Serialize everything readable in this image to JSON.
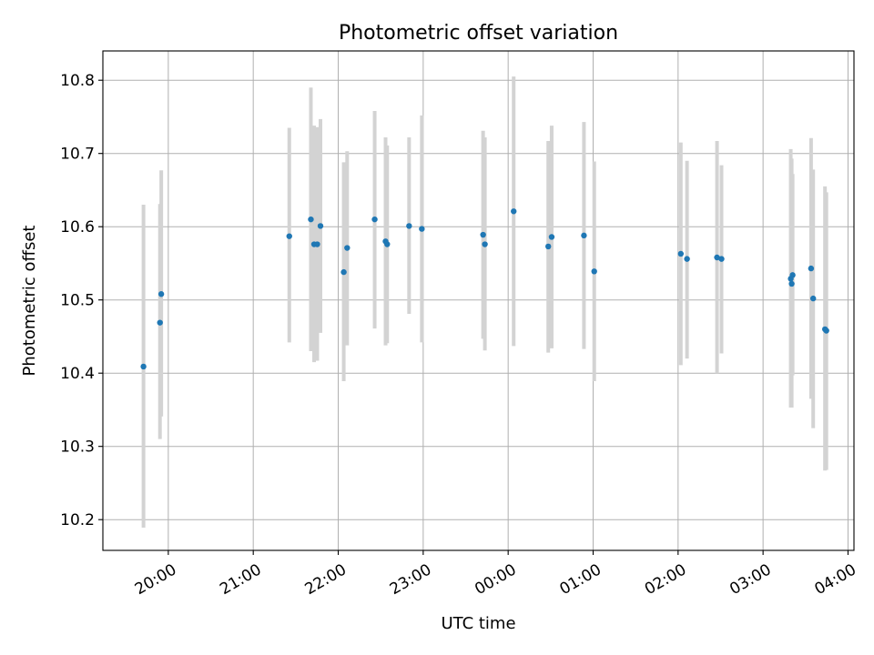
{
  "chart_data": {
    "type": "scatter",
    "title": "Photometric offset variation",
    "xlabel": "UTC time",
    "ylabel": "Photometric offset",
    "x_unit": "UTC hours on the 24h clock (times after midnight written as 24+h)",
    "xlim": [
      19.23,
      28.07
    ],
    "ylim": [
      10.158,
      10.84
    ],
    "x_ticks": [
      {
        "value": 20,
        "label": "20:00"
      },
      {
        "value": 21,
        "label": "21:00"
      },
      {
        "value": 22,
        "label": "22:00"
      },
      {
        "value": 23,
        "label": "23:00"
      },
      {
        "value": 24,
        "label": "00:00"
      },
      {
        "value": 25,
        "label": "01:00"
      },
      {
        "value": 26,
        "label": "02:00"
      },
      {
        "value": 27,
        "label": "03:00"
      },
      {
        "value": 28,
        "label": "04:00"
      }
    ],
    "y_ticks": [
      {
        "value": 10.2,
        "label": "10.2"
      },
      {
        "value": 10.3,
        "label": "10.3"
      },
      {
        "value": 10.4,
        "label": "10.4"
      },
      {
        "value": 10.5,
        "label": "10.5"
      },
      {
        "value": 10.6,
        "label": "10.6"
      },
      {
        "value": 10.7,
        "label": "10.7"
      },
      {
        "value": 10.8,
        "label": "10.8"
      }
    ],
    "grid": true,
    "point_color": "#1f77b4",
    "errorbar_color": "#d3d3d3",
    "points": [
      {
        "x": 19.708,
        "y": 10.409,
        "lo": 10.189,
        "hi": 10.63
      },
      {
        "x": 19.902,
        "y": 10.469,
        "lo": 10.31,
        "hi": 10.631
      },
      {
        "x": 19.917,
        "y": 10.508,
        "lo": 10.341,
        "hi": 10.677
      },
      {
        "x": 21.424,
        "y": 10.587,
        "lo": 10.442,
        "hi": 10.735
      },
      {
        "x": 21.678,
        "y": 10.61,
        "lo": 10.43,
        "hi": 10.79
      },
      {
        "x": 21.716,
        "y": 10.576,
        "lo": 10.415,
        "hi": 10.738
      },
      {
        "x": 21.753,
        "y": 10.576,
        "lo": 10.417,
        "hi": 10.736
      },
      {
        "x": 21.791,
        "y": 10.601,
        "lo": 10.455,
        "hi": 10.747
      },
      {
        "x": 22.065,
        "y": 10.538,
        "lo": 10.389,
        "hi": 10.688
      },
      {
        "x": 22.105,
        "y": 10.571,
        "lo": 10.438,
        "hi": 10.703
      },
      {
        "x": 22.429,
        "y": 10.61,
        "lo": 10.461,
        "hi": 10.758
      },
      {
        "x": 22.557,
        "y": 10.58,
        "lo": 10.438,
        "hi": 10.722
      },
      {
        "x": 22.576,
        "y": 10.576,
        "lo": 10.441,
        "hi": 10.711
      },
      {
        "x": 22.834,
        "y": 10.601,
        "lo": 10.481,
        "hi": 10.722
      },
      {
        "x": 22.984,
        "y": 10.597,
        "lo": 10.442,
        "hi": 10.752
      },
      {
        "x": 23.705,
        "y": 10.589,
        "lo": 10.447,
        "hi": 10.731
      },
      {
        "x": 23.726,
        "y": 10.576,
        "lo": 10.431,
        "hi": 10.722
      },
      {
        "x": 24.065,
        "y": 10.621,
        "lo": 10.437,
        "hi": 10.805
      },
      {
        "x": 24.472,
        "y": 10.573,
        "lo": 10.428,
        "hi": 10.717
      },
      {
        "x": 24.512,
        "y": 10.586,
        "lo": 10.434,
        "hi": 10.738
      },
      {
        "x": 24.892,
        "y": 10.588,
        "lo": 10.433,
        "hi": 10.743
      },
      {
        "x": 25.013,
        "y": 10.539,
        "lo": 10.389,
        "hi": 10.689
      },
      {
        "x": 26.032,
        "y": 10.563,
        "lo": 10.411,
        "hi": 10.715
      },
      {
        "x": 26.105,
        "y": 10.556,
        "lo": 10.42,
        "hi": 10.69
      },
      {
        "x": 26.458,
        "y": 10.558,
        "lo": 10.4,
        "hi": 10.717
      },
      {
        "x": 26.511,
        "y": 10.556,
        "lo": 10.427,
        "hi": 10.684
      },
      {
        "x": 27.326,
        "y": 10.529,
        "lo": 10.353,
        "hi": 10.706
      },
      {
        "x": 27.337,
        "y": 10.522,
        "lo": 10.353,
        "hi": 10.693
      },
      {
        "x": 27.348,
        "y": 10.534,
        "lo": 10.397,
        "hi": 10.672
      },
      {
        "x": 27.565,
        "y": 10.543,
        "lo": 10.365,
        "hi": 10.721
      },
      {
        "x": 27.59,
        "y": 10.502,
        "lo": 10.325,
        "hi": 10.678
      },
      {
        "x": 27.729,
        "y": 10.46,
        "lo": 10.267,
        "hi": 10.655
      },
      {
        "x": 27.745,
        "y": 10.458,
        "lo": 10.268,
        "hi": 10.647
      }
    ]
  }
}
